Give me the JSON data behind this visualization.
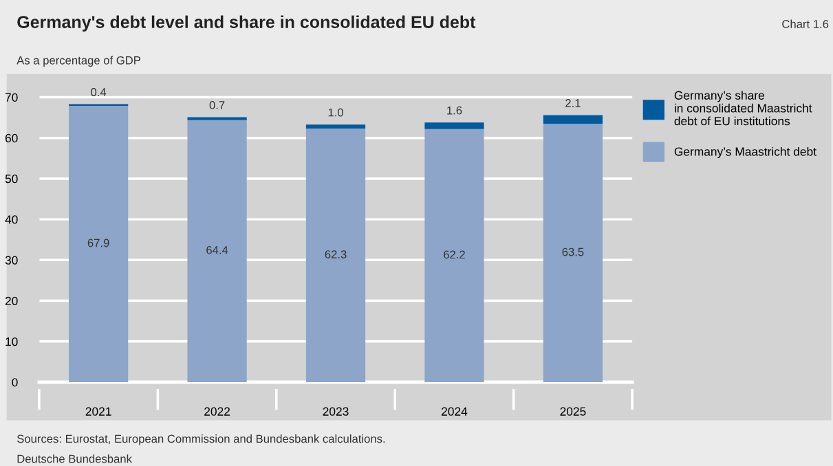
{
  "chart_data": {
    "type": "bar",
    "title": "Germany's debt level and share in consolidated EU debt",
    "subtitle": "As a percentage of GDP",
    "annotations": [
      "Chart 1.6",
      "Sources: Eurostat, European Commission and Bundesbank calculations.",
      "Deutsche Bundesbank"
    ],
    "categories": [
      "2021",
      "2022",
      "2023",
      "2024",
      "2025"
    ],
    "stacked": true,
    "series": [
      {
        "name": "Germany’s Maastricht debt",
        "color": "#8ca5c8",
        "values": [
          67.9,
          64.4,
          62.3,
          62.2,
          63.5
        ],
        "value_labels": [
          "67.9",
          "64.4",
          "62.3",
          "62.2",
          "63.5"
        ]
      },
      {
        "name": "Germany’s share\nin consolidated Maastricht\ndebt of EU institutions",
        "color": "#005a9b",
        "values": [
          0.4,
          0.7,
          1.0,
          1.6,
          2.1
        ],
        "value_labels": [
          "0.4",
          "0.7",
          "1.0",
          "1.6",
          "2.1"
        ]
      }
    ],
    "ylim": [
      0,
      75
    ],
    "yticks": [
      0,
      10,
      20,
      30,
      40,
      50,
      60,
      70
    ],
    "grid": "y",
    "legend": "right"
  }
}
